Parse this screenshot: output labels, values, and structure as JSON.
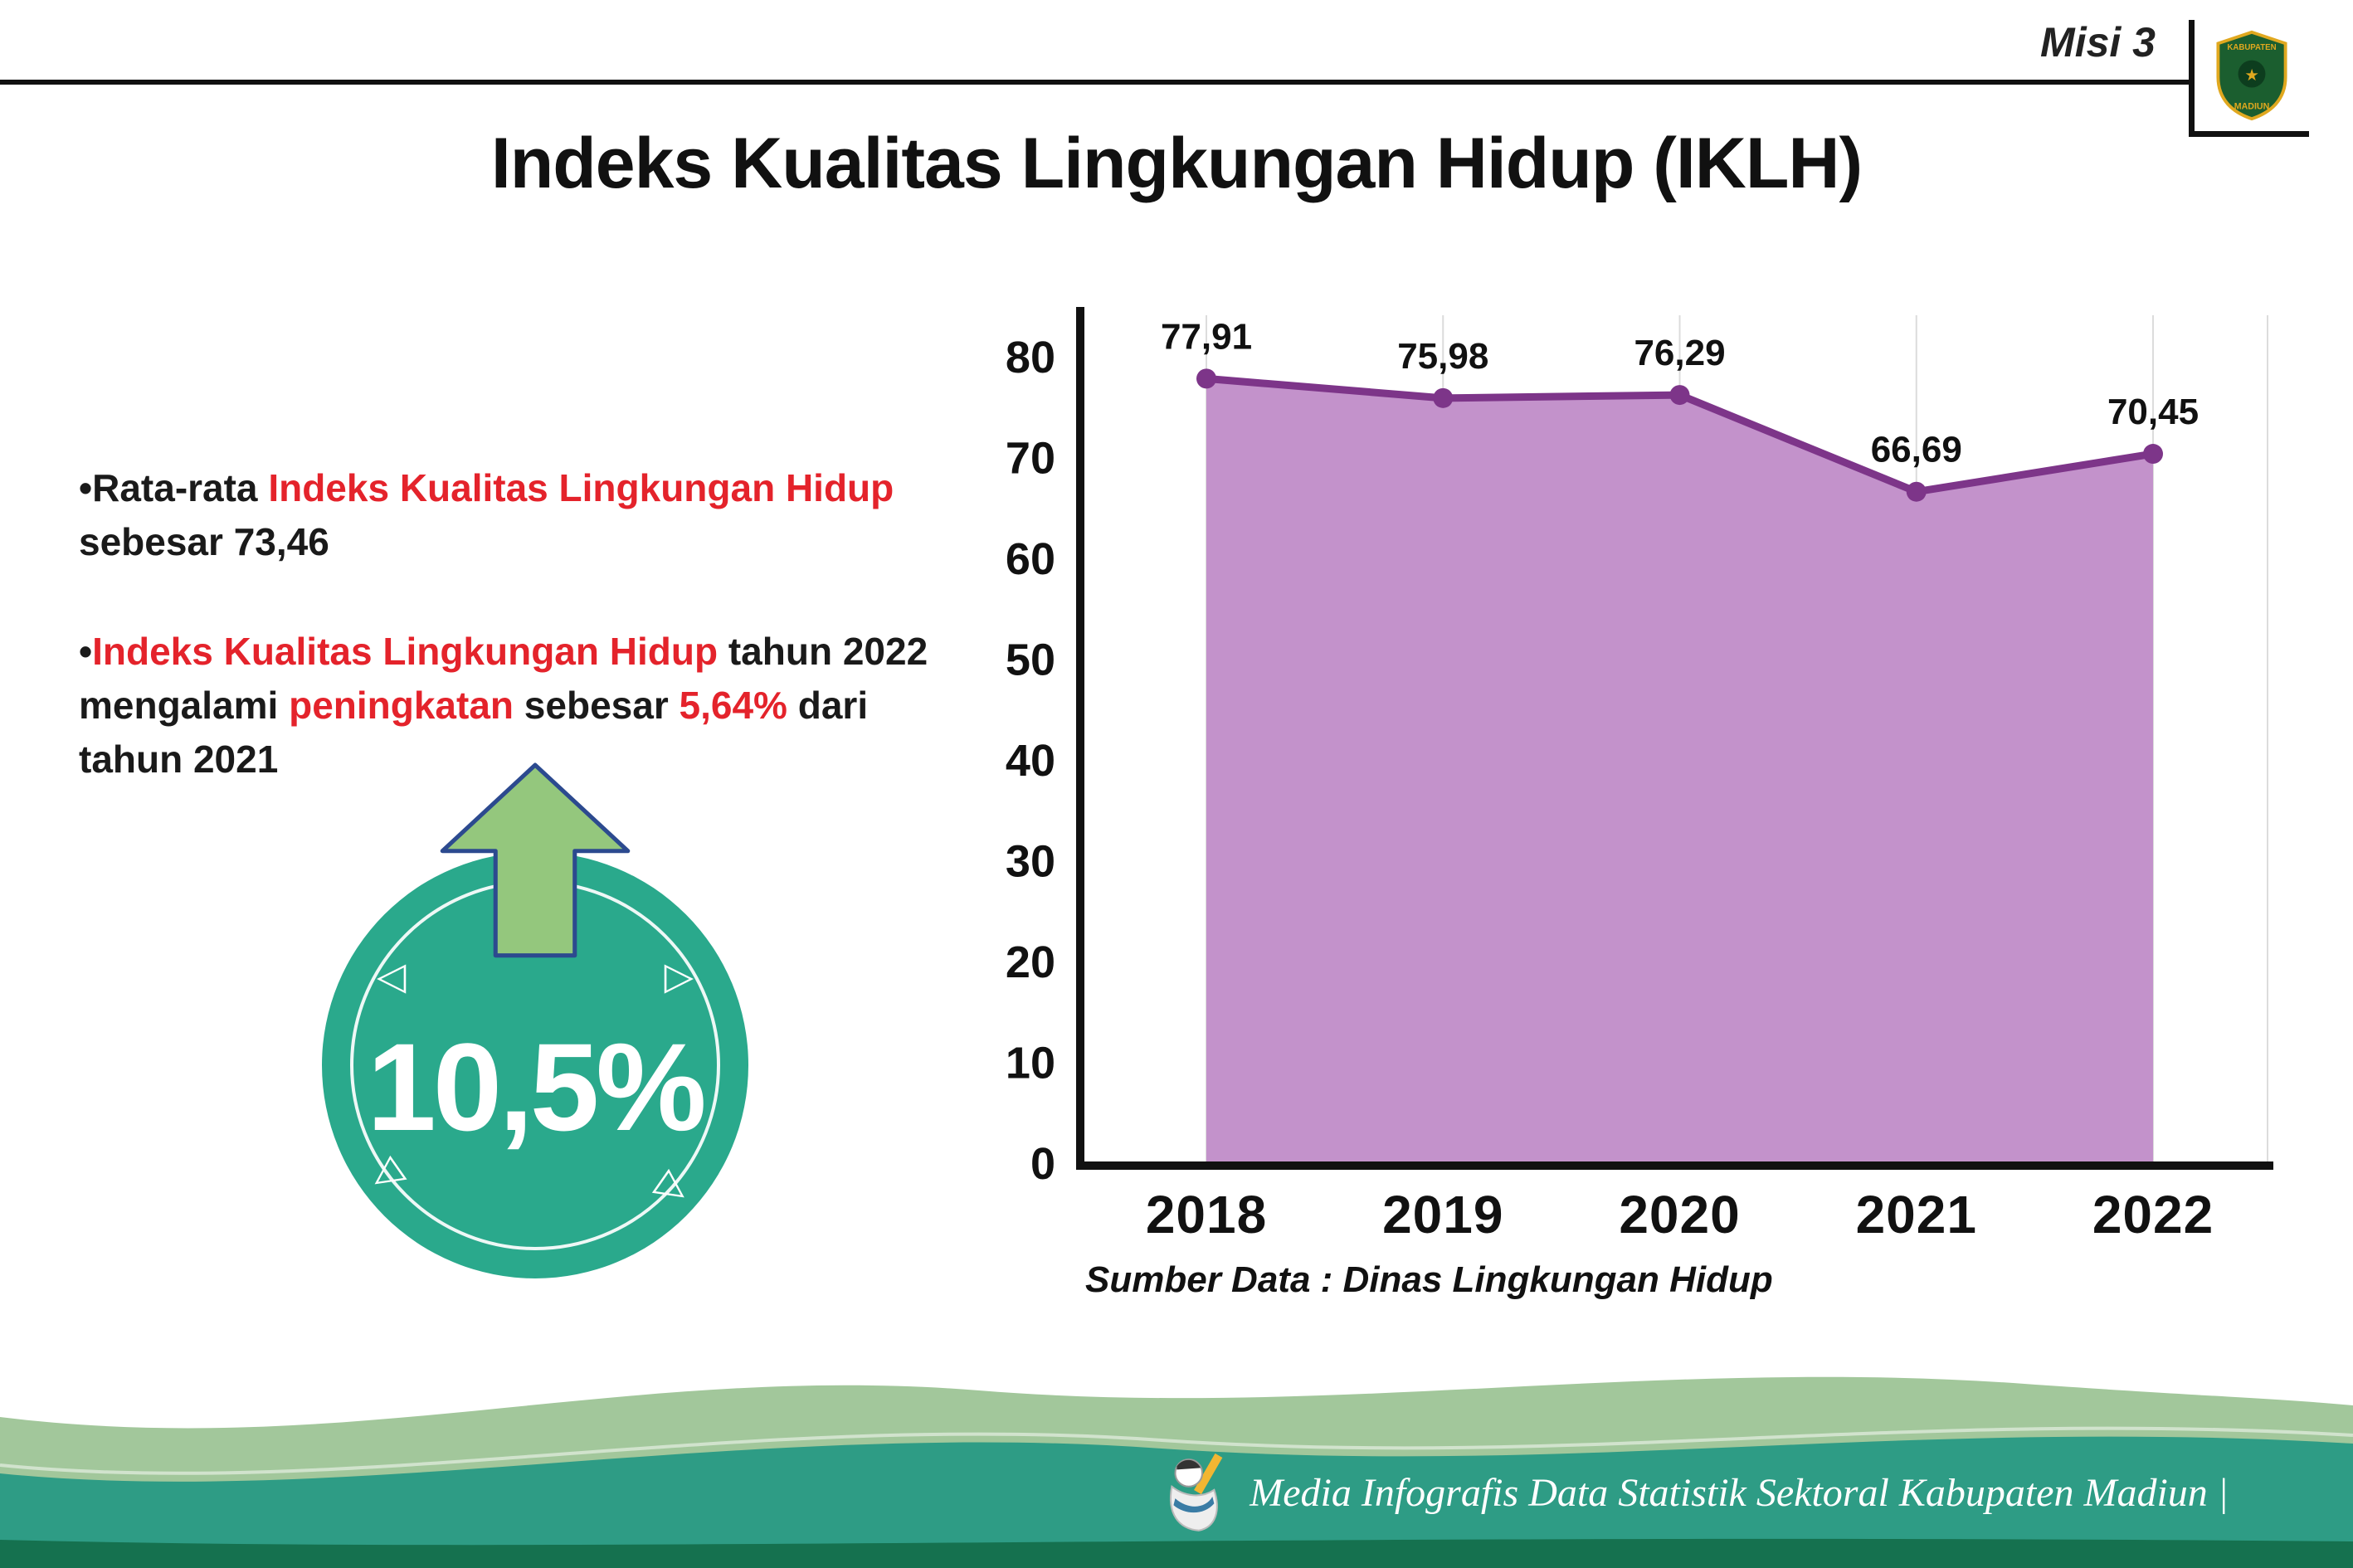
{
  "colors": {
    "red": "#e4232b",
    "teal": "#2aa98c",
    "arrow_green": "#94c77d",
    "arrow_outline": "#2c4a8f",
    "purple_line": "#7d3589",
    "purple_fill": "#c392cb",
    "gridline": "#dcdcdc",
    "footer_sage": "#a2c79b",
    "footer_teal": "#2e9c85",
    "footer_dark": "#15714f",
    "logo_green": "#1b5e2f",
    "logo_gold": "#e0a81f"
  },
  "header": {
    "misi_label": "Misi 3",
    "title": "Indeks Kualitas Lingkungan Hidup (IKLH)",
    "logo_top": "KABUPATEN",
    "logo_bottom": "MADIUN",
    "logo_star": "★"
  },
  "bullets": {
    "marker": "•",
    "b1": {
      "r1": "Rata-rata ",
      "r2": "Indeks Kualitas Lingkungan Hidup",
      "r3": " sebesar 73,46"
    },
    "b2": {
      "r1": "Indeks Kualitas Lingkungan Hidup",
      "r2": " tahun 2022 mengalami ",
      "r3": "peningkatan",
      "r4": " sebesar ",
      "r5": "5,64%",
      "r6": " dari tahun 2021"
    }
  },
  "badge": {
    "value": "10,5%",
    "decor": [
      "◁",
      "▷",
      "◁",
      "▷"
    ]
  },
  "chart_data": {
    "type": "area",
    "categories": [
      "2018",
      "2019",
      "2020",
      "2021",
      "2022"
    ],
    "values": [
      77.91,
      75.98,
      76.29,
      66.69,
      70.45
    ],
    "point_labels": [
      "77,91",
      "75,98",
      "76,29",
      "66,69",
      "70,45"
    ],
    "ylim": [
      0,
      80
    ],
    "yticks": [
      0,
      10,
      20,
      30,
      40,
      50,
      60,
      70,
      80
    ],
    "grid": "vertical-light",
    "legend": "none",
    "source": "Sumber Data : Dinas Lingkungan Hidup"
  },
  "footer": {
    "credit": "Media Infografis Data Statistik Sektoral Kabupaten Madiun |"
  }
}
